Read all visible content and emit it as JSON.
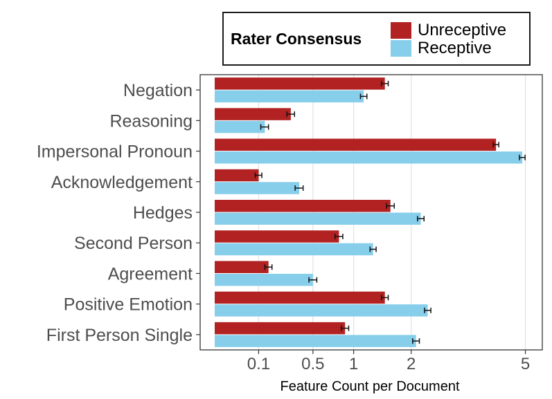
{
  "legend": {
    "title": "Rater Consensus",
    "entries": [
      {
        "name": "Unreceptive",
        "color": "#b22222"
      },
      {
        "name": "Receptive",
        "color": "#87ceeb"
      }
    ]
  },
  "chart_data": {
    "type": "bar",
    "orientation": "horizontal",
    "xlabel": "Feature Count per Document",
    "ylabel": "",
    "x_scale": "sqrt",
    "xlim": [
      0,
      5.2
    ],
    "x_ticks": [
      0.1,
      0.5,
      1,
      2,
      5
    ],
    "x_tick_labels": [
      "0.1",
      "0.5",
      "1",
      "2",
      "5"
    ],
    "grid": "vertical",
    "legend_position": "top",
    "categories": [
      "Negation",
      "Reasoning",
      "Impersonal Pronoun",
      "Acknowledgement",
      "Hedges",
      "Second Person",
      "Agreement",
      "Positive Emotion",
      "First Person Single"
    ],
    "series": [
      {
        "name": "Unreceptive",
        "color": "#b22222",
        "values": [
          1.5,
          0.3,
          4.1,
          0.1,
          1.6,
          0.8,
          0.15,
          1.5,
          0.88
        ],
        "errors": [
          0.06,
          0.03,
          0.08,
          0.015,
          0.07,
          0.05,
          0.02,
          0.06,
          0.05
        ]
      },
      {
        "name": "Receptive",
        "color": "#87ceeb",
        "values": [
          1.15,
          0.13,
          4.9,
          0.37,
          2.2,
          1.3,
          0.5,
          2.35,
          2.1
        ],
        "errors": [
          0.05,
          0.02,
          0.09,
          0.035,
          0.07,
          0.05,
          0.04,
          0.07,
          0.07
        ]
      }
    ]
  }
}
